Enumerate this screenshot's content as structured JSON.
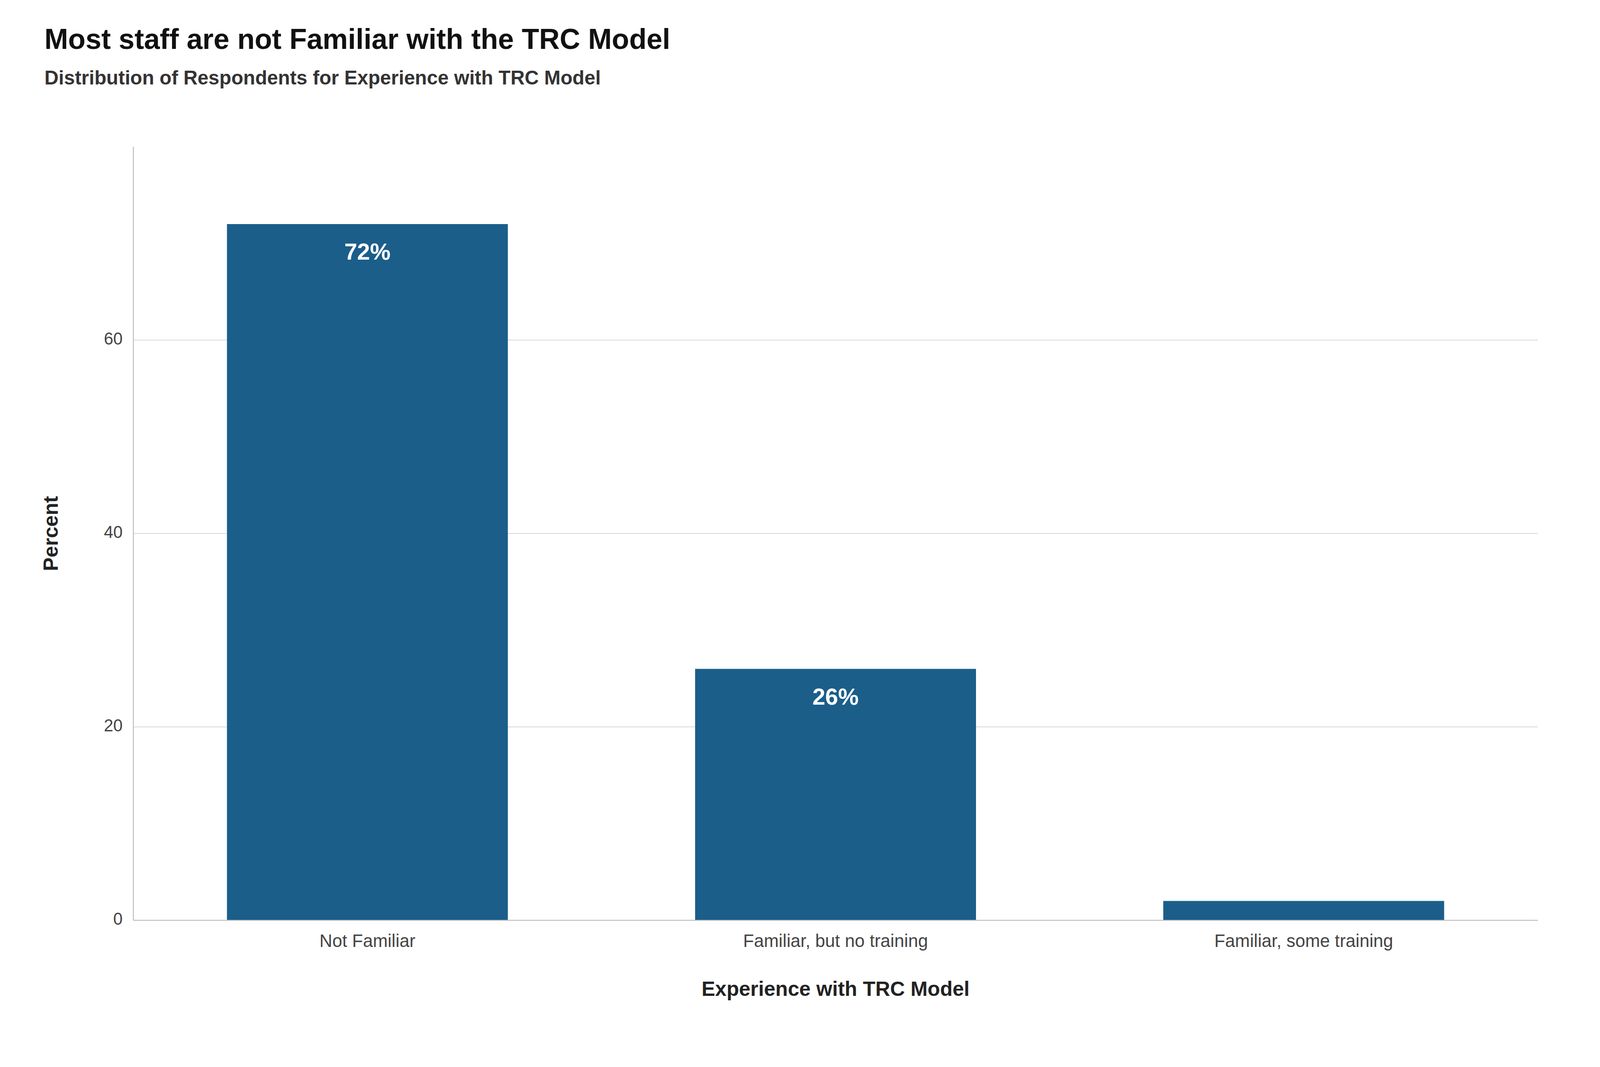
{
  "chart_data": {
    "type": "bar",
    "title": "Most staff are not Familiar with the TRC Model",
    "subtitle": "Distribution of Respondents for Experience with TRC Model",
    "categories": [
      "Not Familiar",
      "Familiar, but no training",
      "Familiar, some training"
    ],
    "values": [
      72,
      26,
      2
    ],
    "value_labels": [
      "72%",
      "26%",
      null
    ],
    "data_labels": true,
    "color": "#1B5E8A",
    "xlabel": "Experience with TRC Model",
    "ylabel": "Percent",
    "ylim": [
      0,
      80
    ],
    "yticks": [
      0,
      20,
      40,
      60
    ],
    "grid": true
  }
}
